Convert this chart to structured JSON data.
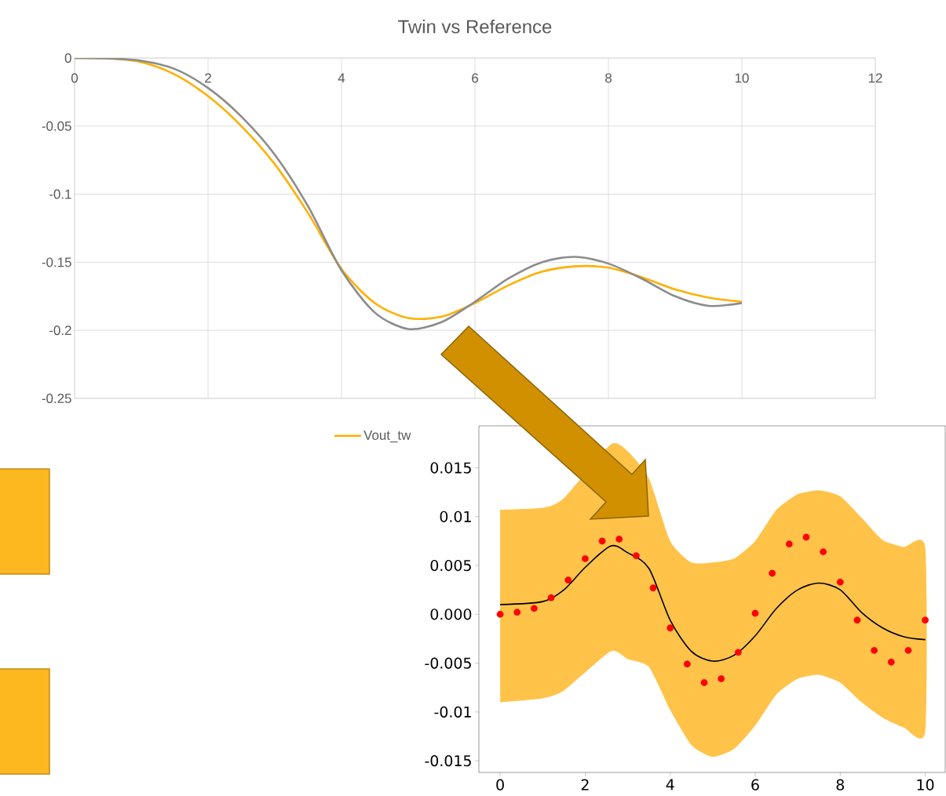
{
  "chart_data": [
    {
      "type": "line",
      "title": "Twin vs Reference",
      "x": [
        0,
        0.5,
        1,
        1.5,
        2,
        2.5,
        3,
        3.5,
        4,
        4.5,
        5,
        5.5,
        6,
        6.5,
        7,
        7.5,
        8,
        8.5,
        9,
        9.5,
        10
      ],
      "series": [
        {
          "name": "Vout_tw",
          "color": "#ffb000",
          "values": [
            0,
            -0.0003,
            -0.003,
            -0.012,
            -0.028,
            -0.05,
            -0.078,
            -0.114,
            -0.155,
            -0.18,
            -0.191,
            -0.19,
            -0.18,
            -0.167,
            -0.157,
            -0.153,
            -0.154,
            -0.161,
            -0.17,
            -0.176,
            -0.179
          ]
        },
        {
          "color": "#8c8c8c",
          "values": [
            0,
            -0.0003,
            -0.002,
            -0.008,
            -0.022,
            -0.043,
            -0.071,
            -0.109,
            -0.156,
            -0.187,
            -0.199,
            -0.194,
            -0.179,
            -0.162,
            -0.15,
            -0.146,
            -0.151,
            -0.162,
            -0.175,
            -0.182,
            -0.18
          ]
        }
      ],
      "xlim": [
        0,
        12
      ],
      "xticks": [
        0,
        2,
        4,
        6,
        8,
        10,
        12
      ],
      "ylim": [
        -0.25,
        0
      ],
      "yticks": [
        -0.25,
        -0.2,
        -0.15,
        -0.1,
        -0.05,
        0
      ],
      "grid": true,
      "legend": "bottom"
    },
    {
      "type": "line",
      "series": [
        {
          "type": "line",
          "color": "#000000",
          "x": [
            0,
            1,
            1.5,
            2,
            2.6,
            3,
            3.5,
            4,
            4.5,
            5,
            5.5,
            6,
            6.5,
            7,
            7.5,
            8,
            8.5,
            9,
            9.5,
            10
          ],
          "values": [
            0.001,
            0.0013,
            0.0025,
            0.0048,
            0.007,
            0.0063,
            0.0047,
            -0.0006,
            -0.0038,
            -0.0048,
            -0.0042,
            -0.0022,
            0.0006,
            0.0025,
            0.0032,
            0.0025,
            0.0002,
            -0.0014,
            -0.0023,
            -0.0026
          ],
          "upper": [
            0.0107,
            0.0109,
            0.0119,
            null,
            0.0174,
            0.0167,
            0.0139,
            0.0075,
            0.0053,
            0.0053,
            0.0057,
            0.0075,
            0.0107,
            0.0123,
            0.0127,
            0.0121,
            0.0099,
            0.0076,
            0.0069,
            0.0068
          ],
          "lower": [
            -0.009,
            -0.0086,
            -0.0078,
            null,
            -0.0038,
            -0.0046,
            -0.0054,
            -0.0098,
            -0.0134,
            -0.0146,
            -0.0138,
            -0.0114,
            -0.0082,
            -0.0066,
            -0.0062,
            -0.007,
            -0.009,
            -0.0106,
            -0.0116,
            -0.012
          ]
        },
        {
          "type": "scatter",
          "color": "#ff0000",
          "x": [
            0,
            0.4,
            0.8,
            1.2,
            1.6,
            2.0,
            2.4,
            2.8,
            3.2,
            3.6,
            4.0,
            4.4,
            4.8,
            5.2,
            5.6,
            6.0,
            6.4,
            6.8,
            7.2,
            7.6,
            8.0,
            8.4,
            8.8,
            9.2,
            9.6,
            10.0
          ],
          "values": [
            0,
            0.0002,
            0.0006,
            0.0017,
            0.0035,
            0.0057,
            0.0075,
            0.0077,
            0.006,
            0.0027,
            -0.0014,
            -0.0051,
            -0.007,
            -0.0066,
            -0.0039,
            0.0001,
            0.0042,
            0.0072,
            0.0079,
            0.0064,
            0.0033,
            -0.0006,
            -0.0037,
            -0.0049,
            -0.0037,
            -0.0006
          ]
        }
      ],
      "xlim": [
        -0.5,
        10.47
      ],
      "xticks": [
        0,
        2,
        4,
        6,
        8,
        10
      ],
      "ylim": [
        -0.0162,
        0.0193
      ],
      "yticks": [
        -0.015,
        -0.01,
        -0.005,
        {
          "value": 0,
          "label": "0.000"
        },
        0.005,
        0.01,
        0.015
      ]
    }
  ]
}
